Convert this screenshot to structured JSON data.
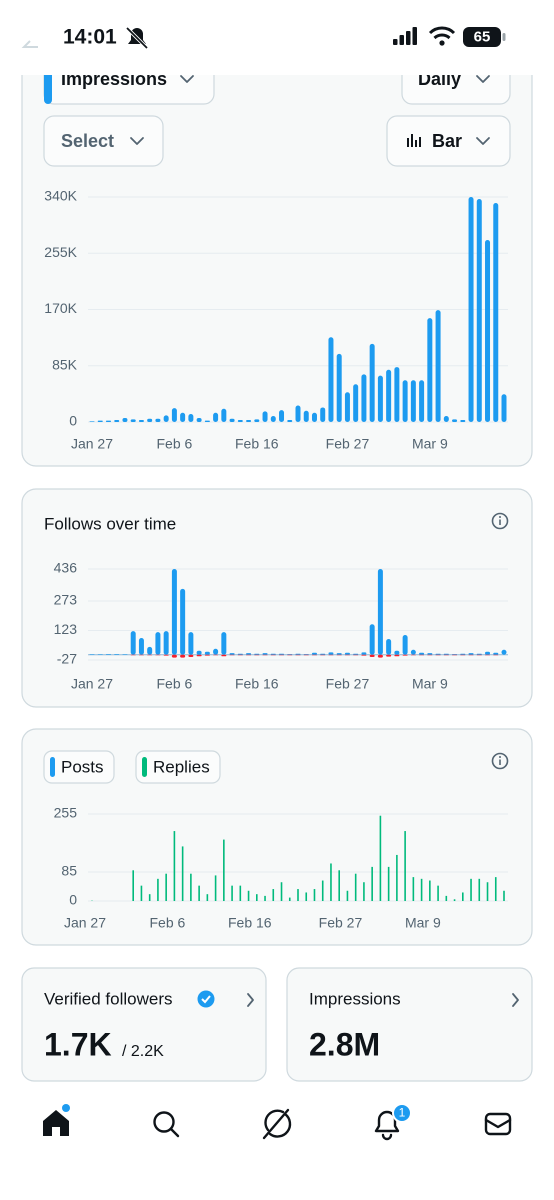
{
  "status": {
    "time": "14:01",
    "battery": "65"
  },
  "controls": {
    "metric": "Impressions",
    "period": "Daily",
    "filter": "Select",
    "view": "Bar"
  },
  "chart_data": [
    {
      "type": "bar",
      "categories": [
        "Jan 27",
        null,
        null,
        null,
        null,
        null,
        null,
        null,
        null,
        null,
        "Feb 6",
        null,
        null,
        null,
        null,
        null,
        null,
        null,
        null,
        null,
        "Feb 16",
        null,
        null,
        null,
        null,
        null,
        null,
        null,
        null,
        null,
        null,
        "Feb 27",
        null,
        null,
        null,
        null,
        null,
        null,
        null,
        null,
        null,
        "Mar 9",
        null,
        null,
        null,
        null,
        null,
        null,
        null,
        null,
        null
      ],
      "values": [
        1000,
        2000,
        2000,
        3000,
        6000,
        4000,
        3000,
        5000,
        5000,
        10000,
        21000,
        14000,
        12000,
        6000,
        2000,
        14000,
        20000,
        5000,
        3000,
        3000,
        4000,
        16000,
        9000,
        18000,
        3000,
        25000,
        17000,
        14000,
        22000,
        128000,
        103000,
        45000,
        57000,
        72000,
        118000,
        70000,
        79000,
        83000,
        63000,
        63000,
        63000,
        157000,
        169000,
        9000,
        4000,
        3000,
        340000,
        337000,
        275000,
        331000,
        42000
      ],
      "color": "#1d9bf0",
      "ylim": [
        0,
        340000
      ],
      "yticks": [
        0,
        {
          "value": 85000,
          "label": "85K"
        },
        {
          "value": 170000,
          "label": "170K"
        },
        {
          "value": 255000,
          "label": "255K"
        },
        {
          "value": 340000,
          "label": "340K"
        }
      ],
      "grid": true
    },
    {
      "type": "bar",
      "title": "Follows over time",
      "categories": [
        "Jan 27",
        null,
        null,
        null,
        null,
        null,
        null,
        null,
        null,
        null,
        "Feb 6",
        null,
        null,
        null,
        null,
        null,
        null,
        null,
        null,
        null,
        "Feb 16",
        null,
        null,
        null,
        null,
        null,
        null,
        null,
        null,
        null,
        null,
        "Feb 27",
        null,
        null,
        null,
        null,
        null,
        null,
        null,
        null,
        null,
        "Mar 9",
        null,
        null,
        null,
        null,
        null,
        null,
        null,
        null,
        null
      ],
      "series": [
        {
          "color": "#1d9bf0",
          "values": [
            2,
            2,
            3,
            3,
            2,
            120,
            85,
            40,
            115,
            120,
            436,
            335,
            115,
            20,
            15,
            30,
            115,
            8,
            5,
            8,
            5,
            8,
            5,
            5,
            3,
            5,
            3,
            10,
            5,
            12,
            8,
            10,
            5,
            12,
            155,
            436,
            80,
            20,
            100,
            25,
            10,
            8,
            5,
            5,
            3,
            5,
            8,
            5,
            15,
            10,
            25
          ]
        },
        {
          "color": "#f4212e",
          "values": [
            0,
            0,
            0,
            0,
            0,
            -3,
            -3,
            -3,
            -3,
            -5,
            -15,
            -15,
            -12,
            -8,
            -5,
            -3,
            -8,
            -3,
            -3,
            -3,
            -3,
            -3,
            -3,
            -3,
            -3,
            -3,
            -3,
            -3,
            -3,
            -3,
            -3,
            -3,
            -3,
            -5,
            -12,
            -15,
            -10,
            -8,
            -5,
            -3,
            -3,
            -3,
            -3,
            -3,
            -3,
            -3,
            -3,
            -3,
            -3,
            -3,
            0
          ]
        }
      ],
      "ylim": [
        -27,
        436
      ],
      "yticks": [
        -27,
        123,
        273,
        436
      ],
      "grid": true
    },
    {
      "type": "bar",
      "categories": [
        "Jan 27",
        null,
        null,
        null,
        null,
        null,
        null,
        null,
        null,
        null,
        "Feb 6",
        null,
        null,
        null,
        null,
        null,
        null,
        null,
        null,
        null,
        "Feb 16",
        null,
        null,
        null,
        null,
        null,
        null,
        null,
        null,
        null,
        null,
        "Feb 27",
        null,
        null,
        null,
        null,
        null,
        null,
        null,
        null,
        null,
        "Mar 9",
        null,
        null,
        null,
        null,
        null,
        null,
        null,
        null,
        null
      ],
      "series": [
        {
          "name": "Posts",
          "color": "#1d9bf0",
          "values": [
            null,
            null,
            null,
            null,
            null,
            null,
            null,
            null,
            null,
            null,
            null,
            null,
            null,
            null,
            null,
            null,
            null,
            null,
            null,
            null,
            null,
            null,
            null,
            null,
            null,
            null,
            null,
            null,
            null,
            null,
            null,
            null,
            null,
            null,
            null,
            null,
            null,
            null,
            null,
            null,
            null,
            null,
            null,
            null,
            null,
            null,
            null,
            null,
            null,
            null,
            null
          ]
        },
        {
          "name": "Replies",
          "color": "#00ba7c",
          "values": [
            1,
            0,
            0,
            0,
            0,
            90,
            45,
            20,
            65,
            80,
            205,
            160,
            80,
            45,
            20,
            75,
            180,
            45,
            45,
            30,
            20,
            15,
            35,
            55,
            10,
            35,
            25,
            35,
            60,
            110,
            90,
            30,
            80,
            55,
            100,
            250,
            100,
            135,
            205,
            70,
            65,
            60,
            45,
            15,
            5,
            25,
            65,
            65,
            55,
            70,
            30
          ]
        }
      ],
      "ylim": [
        0,
        255
      ],
      "yticks": [
        0,
        85,
        255
      ],
      "grid": true
    }
  ],
  "cards": [
    {
      "title": "Verified followers",
      "value": "1.7K",
      "total": "/ 2.2K"
    },
    {
      "title": "Impressions",
      "value": "2.8M"
    }
  ],
  "nav": {
    "badge": "1"
  }
}
